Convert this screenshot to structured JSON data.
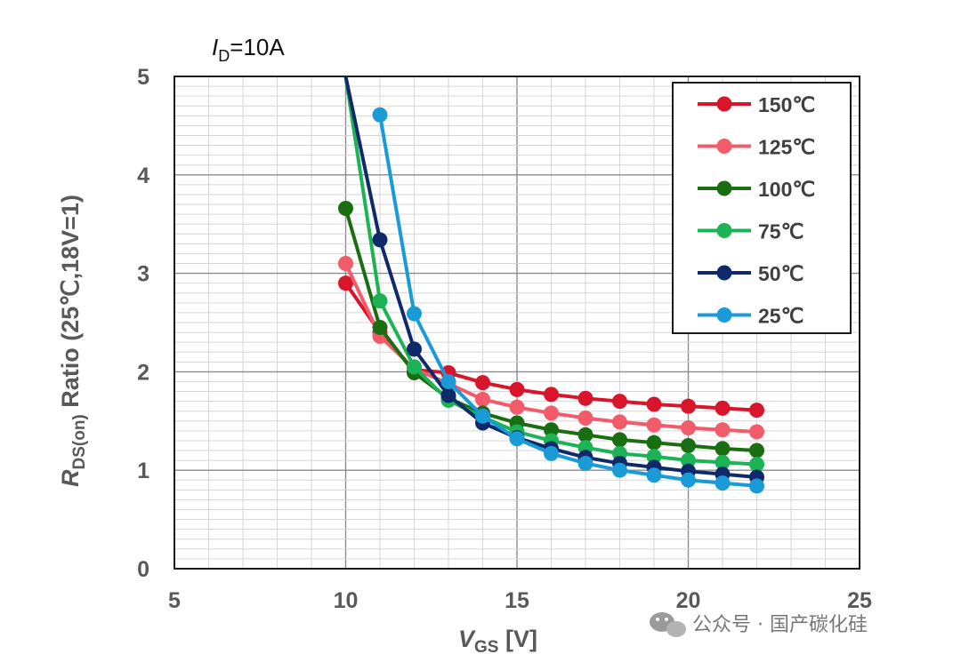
{
  "chart_data": {
    "type": "line",
    "annotation": {
      "symbol": "I",
      "subscript": "D",
      "rest": "=10A"
    },
    "xlabel": {
      "symbol": "V",
      "subscript": "GS",
      "rest": " [V]"
    },
    "ylabel": {
      "symbol": "R",
      "subscript": "DS(on)",
      "rest": " Ratio  (25℃,18V=1)"
    },
    "xlim": [
      5,
      25
    ],
    "ylim": [
      0,
      5
    ],
    "xticks": [
      5,
      10,
      15,
      20,
      25
    ],
    "yticks": [
      0,
      1,
      2,
      3,
      4,
      5
    ],
    "grid": true,
    "legend_position": "top-right",
    "x": [
      10,
      11,
      12,
      13,
      14,
      15,
      16,
      17,
      18,
      19,
      20,
      21,
      22
    ],
    "series": [
      {
        "name": "150℃",
        "color": "#d8152b",
        "values": [
          2.9,
          2.4,
          2.02,
          1.99,
          1.89,
          1.82,
          1.77,
          1.73,
          1.7,
          1.67,
          1.65,
          1.63,
          1.61
        ]
      },
      {
        "name": "125℃",
        "color": "#f25b6a",
        "values": [
          3.1,
          2.36,
          2.03,
          1.88,
          1.72,
          1.64,
          1.58,
          1.53,
          1.49,
          1.46,
          1.43,
          1.41,
          1.39
        ]
      },
      {
        "name": "100℃",
        "color": "#1a6e12",
        "values": [
          3.66,
          2.45,
          1.99,
          1.73,
          1.58,
          1.48,
          1.41,
          1.36,
          1.31,
          1.28,
          1.25,
          1.22,
          1.2
        ]
      },
      {
        "name": "75℃",
        "color": "#1cb357",
        "values": [
          5.0,
          2.72,
          2.05,
          1.71,
          1.54,
          1.39,
          1.3,
          1.23,
          1.17,
          1.14,
          1.1,
          1.08,
          1.06
        ]
      },
      {
        "name": "50℃",
        "color": "#0f2a6b",
        "values": [
          5.0,
          3.34,
          2.23,
          1.76,
          1.48,
          1.33,
          1.22,
          1.13,
          1.07,
          1.03,
          0.99,
          0.96,
          0.93
        ]
      },
      {
        "name": "25℃",
        "color": "#1b9ad8",
        "values": [
          null,
          4.61,
          2.59,
          1.9,
          1.55,
          1.32,
          1.17,
          1.07,
          1.0,
          0.95,
          0.9,
          0.87,
          0.84
        ]
      }
    ]
  },
  "watermark": "公众号 · 国产碳化硅"
}
